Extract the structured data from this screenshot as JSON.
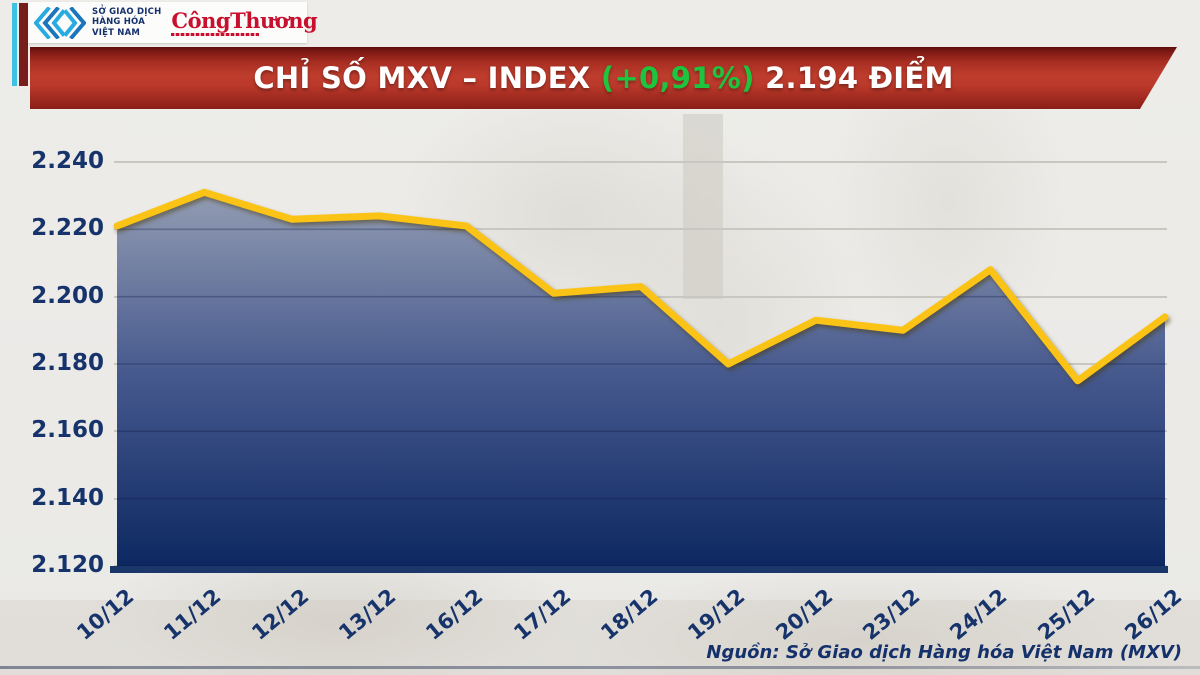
{
  "header": {
    "mxv_logo_text_lines": [
      "SỞ GIAO DỊCH",
      "HÀNG HÓA",
      "VIỆT NAM"
    ],
    "congthuong_logo_text": "CôngThương"
  },
  "banner": {
    "title_prefix": "CHỈ SỐ MXV – INDEX ",
    "title_change": "(+0,91%)",
    "title_suffix": " 2.194 ĐIỂM",
    "banner_color": "#B5352A",
    "change_color": "#1DC53E",
    "title_color": "#FFFFFF"
  },
  "footer": {
    "source_text": "Nguồn: Sở Giao dịch Hàng hóa Việt Nam (MXV)"
  },
  "chart_data": {
    "type": "area",
    "title": "CHỈ SỐ MXV – INDEX (+0,91%) 2.194 ĐIỂM",
    "series_name": "MXV-Index",
    "categories": [
      "10/12",
      "11/12",
      "12/12",
      "13/12",
      "16/12",
      "17/12",
      "18/12",
      "19/12",
      "20/12",
      "23/12",
      "24/12",
      "25/12",
      "26/12"
    ],
    "values": [
      2221,
      2231,
      2223,
      2224,
      2221,
      2201,
      2203,
      2180,
      2193,
      2190,
      2208,
      2175,
      2194
    ],
    "ylim": [
      2120,
      2240
    ],
    "yticks": {
      "values": [
        2240,
        2220,
        2200,
        2180,
        2160,
        2140,
        2120
      ],
      "labels": [
        "2.240",
        "2.220",
        "2.200",
        "2.180",
        "2.160",
        "2.140",
        "2.120"
      ]
    },
    "grid": true,
    "legend": "none",
    "line_color": "#FBC315",
    "fill_gradient": [
      "#97A0B4",
      "#46598E",
      "#0D2861"
    ],
    "label_color": "#16336B",
    "xlabel": "",
    "ylabel": ""
  }
}
